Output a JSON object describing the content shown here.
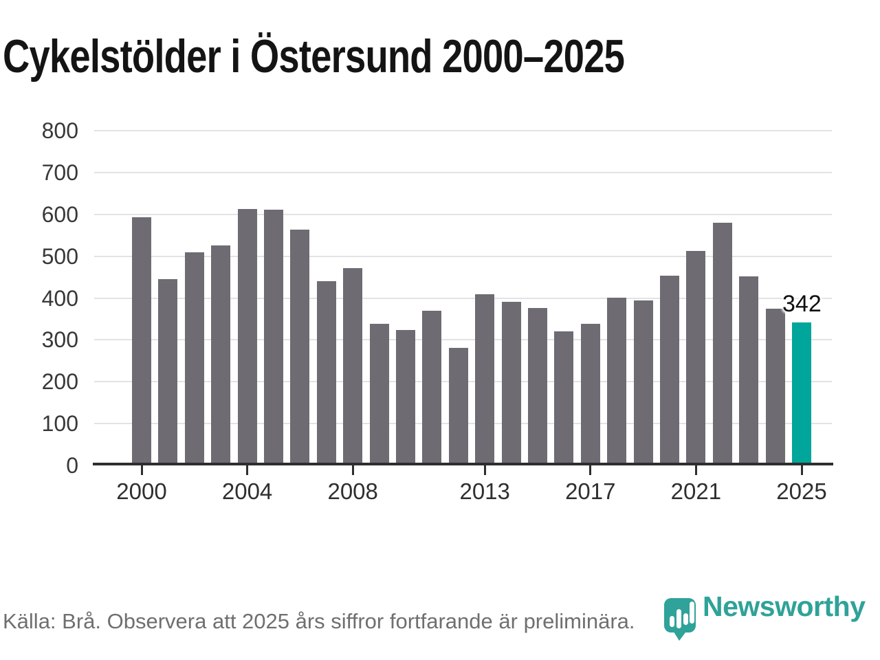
{
  "title": "Cykelstölder i Östersund 2000–2025",
  "footer": {
    "source_note": "Källa: Brå. Observera att 2025 års siffror fortfarande är preliminära."
  },
  "branding": {
    "logo_text": "Newsworthy",
    "logo_icon": "newsworthy-pin-barchart-icon"
  },
  "colors": {
    "bar": "#6e6b73",
    "highlight": "#00a69b",
    "logo_teal": "#2fa299",
    "grid": "#e3e3e3",
    "axis": "#2e2e2e",
    "tick_text": "#333333",
    "muted_text": "#6f6f6f",
    "title_text": "#141414"
  },
  "chart_data": {
    "type": "bar",
    "title": "Cykelstölder i Östersund 2000–2025",
    "xlabel": "",
    "ylabel": "",
    "x": [
      2000,
      2001,
      2002,
      2003,
      2004,
      2005,
      2006,
      2007,
      2008,
      2009,
      2010,
      2011,
      2012,
      2013,
      2014,
      2015,
      2016,
      2017,
      2018,
      2019,
      2020,
      2021,
      2022,
      2023,
      2024,
      2025
    ],
    "values": [
      593,
      445,
      509,
      525,
      613,
      611,
      564,
      441,
      472,
      339,
      324,
      369,
      281,
      409,
      391,
      376,
      320,
      339,
      401,
      395,
      454,
      512,
      580,
      451,
      375,
      342
    ],
    "highlight_x": 2025,
    "annotation": {
      "x": 2025,
      "label": "342"
    },
    "ylim": [
      0,
      800
    ],
    "yticks": [
      0,
      100,
      200,
      300,
      400,
      500,
      600,
      700,
      800
    ],
    "xticks": [
      2000,
      2004,
      2008,
      2013,
      2017,
      2021,
      2025
    ],
    "grid": true,
    "legend": null
  }
}
